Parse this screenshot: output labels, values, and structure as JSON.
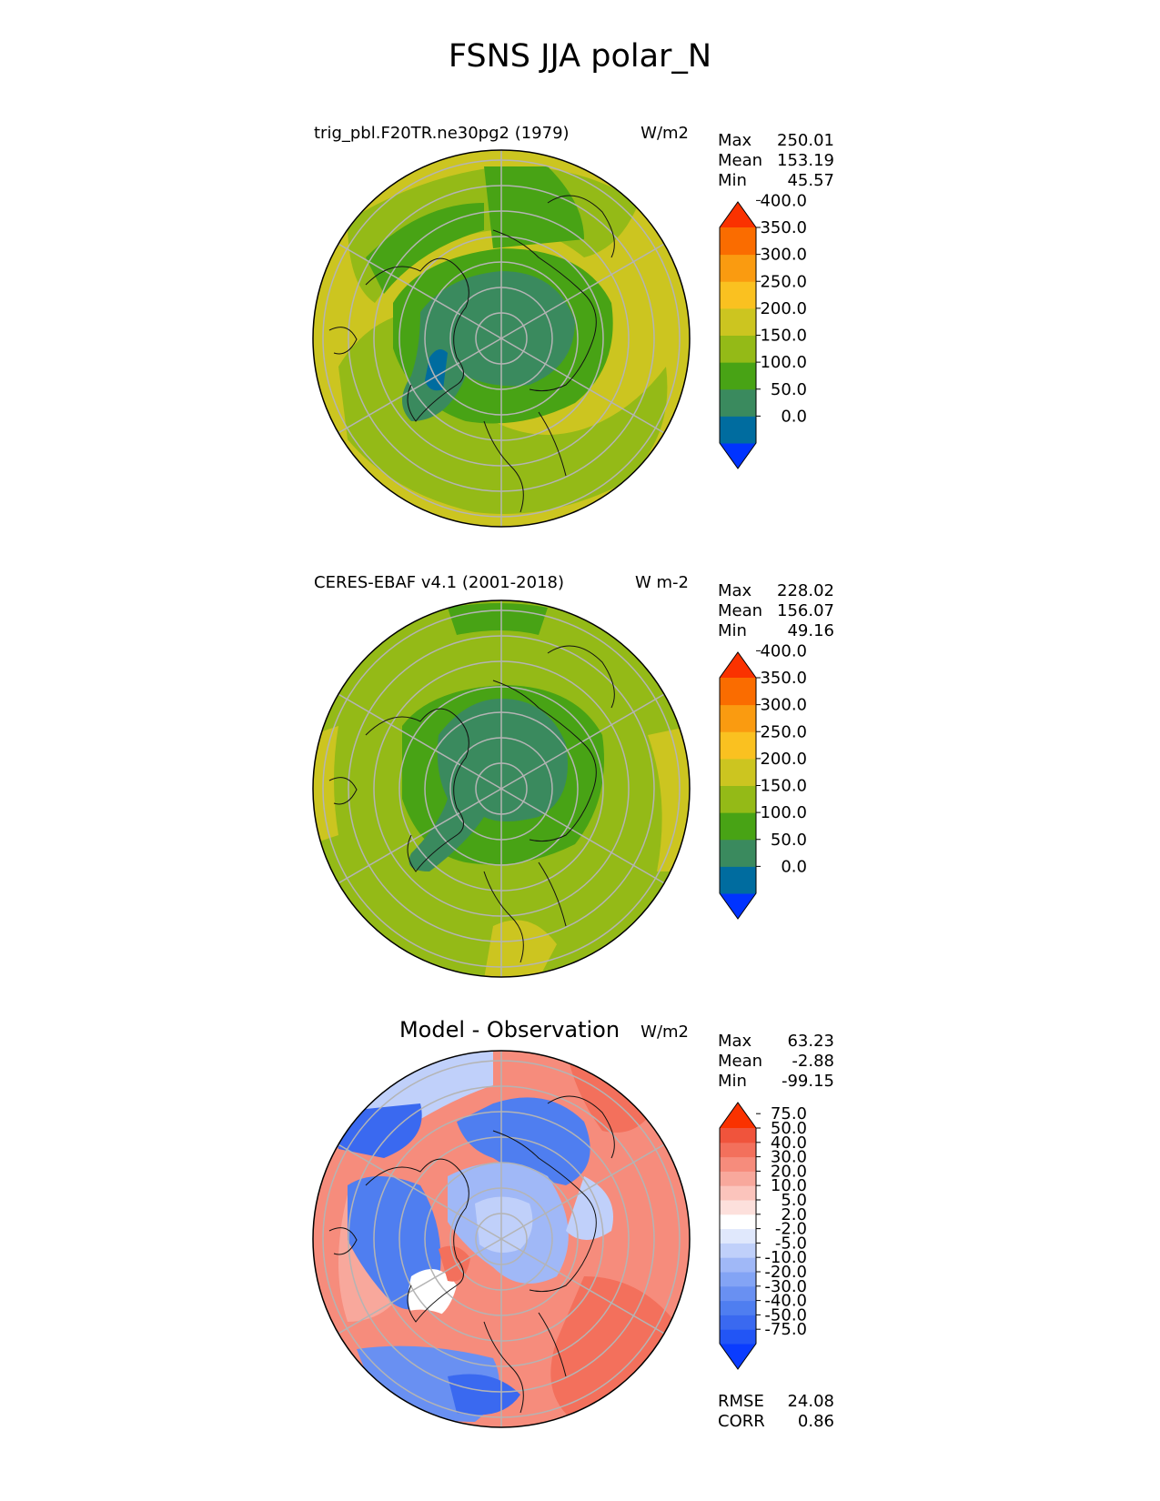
{
  "figure": {
    "title": "FSNS JJA polar_N"
  },
  "panels": [
    {
      "id": "model",
      "title": "trig_pbl.F20TR.ne30pg2 (1979)",
      "units": "W/m2",
      "stats": {
        "max_label": "Max",
        "max": "250.01",
        "mean_label": "Mean",
        "mean": "153.19",
        "min_label": "Min",
        "min": "45.57"
      },
      "colorbar": {
        "levels": [
          "0.0",
          "50.0",
          "100.0",
          "150.0",
          "200.0",
          "250.0",
          "300.0",
          "350.0",
          "400.0"
        ],
        "colors": [
          "#0033ff",
          "#006c9f",
          "#3a8a5e",
          "#48a315",
          "#94ba17",
          "#ccc520",
          "#fac120",
          "#fa9b10",
          "#fa6c00",
          "#fa3200"
        ]
      },
      "field": {
        "region": "polar_N",
        "colors_used": {
          "ocean_high": "#ccc520",
          "mid": "#94ba17",
          "low": "#48a315",
          "arctic": "#3a8a5e",
          "min": "#006c9f"
        }
      }
    },
    {
      "id": "obs",
      "title": "CERES-EBAF v4.1 (2001-2018)",
      "units": "W m-2",
      "stats": {
        "max_label": "Max",
        "max": "228.02",
        "mean_label": "Mean",
        "mean": "156.07",
        "min_label": "Min",
        "min": "49.16"
      },
      "colorbar": {
        "levels": [
          "0.0",
          "50.0",
          "100.0",
          "150.0",
          "200.0",
          "250.0",
          "300.0",
          "350.0",
          "400.0"
        ],
        "colors": [
          "#0033ff",
          "#006c9f",
          "#3a8a5e",
          "#48a315",
          "#94ba17",
          "#ccc520",
          "#fac120",
          "#fa9b10",
          "#fa6c00",
          "#fa3200"
        ]
      },
      "field": {
        "region": "polar_N"
      }
    },
    {
      "id": "diff",
      "title": "Model - Observation",
      "units": "W/m2",
      "stats": {
        "max_label": "Max",
        "max": "63.23",
        "mean_label": "Mean",
        "mean": "-2.88",
        "min_label": "Min",
        "min": "-99.15"
      },
      "colorbar": {
        "levels": [
          "-75.0",
          "-50.0",
          "-40.0",
          "-30.0",
          "-20.0",
          "-10.0",
          "-5.0",
          "-2.0",
          "2.0",
          "5.0",
          "10.0",
          "20.0",
          "30.0",
          "40.0",
          "50.0",
          "75.0"
        ],
        "colors": [
          "#0a3cff",
          "#2255f5",
          "#3a69f0",
          "#4f7ef0",
          "#6990f2",
          "#83a4f5",
          "#a0b8f7",
          "#c0d0fa",
          "#e0e8fc",
          "#ffffff",
          "#fde0dc",
          "#fbc4bc",
          "#f8a89c",
          "#f68c7c",
          "#f3705c",
          "#f0543c",
          "#fa3200"
        ]
      },
      "field": {
        "region": "polar_N"
      },
      "metrics": {
        "rmse_label": "RMSE",
        "rmse": "24.08",
        "corr_label": "CORR",
        "corr": "0.86"
      }
    }
  ]
}
